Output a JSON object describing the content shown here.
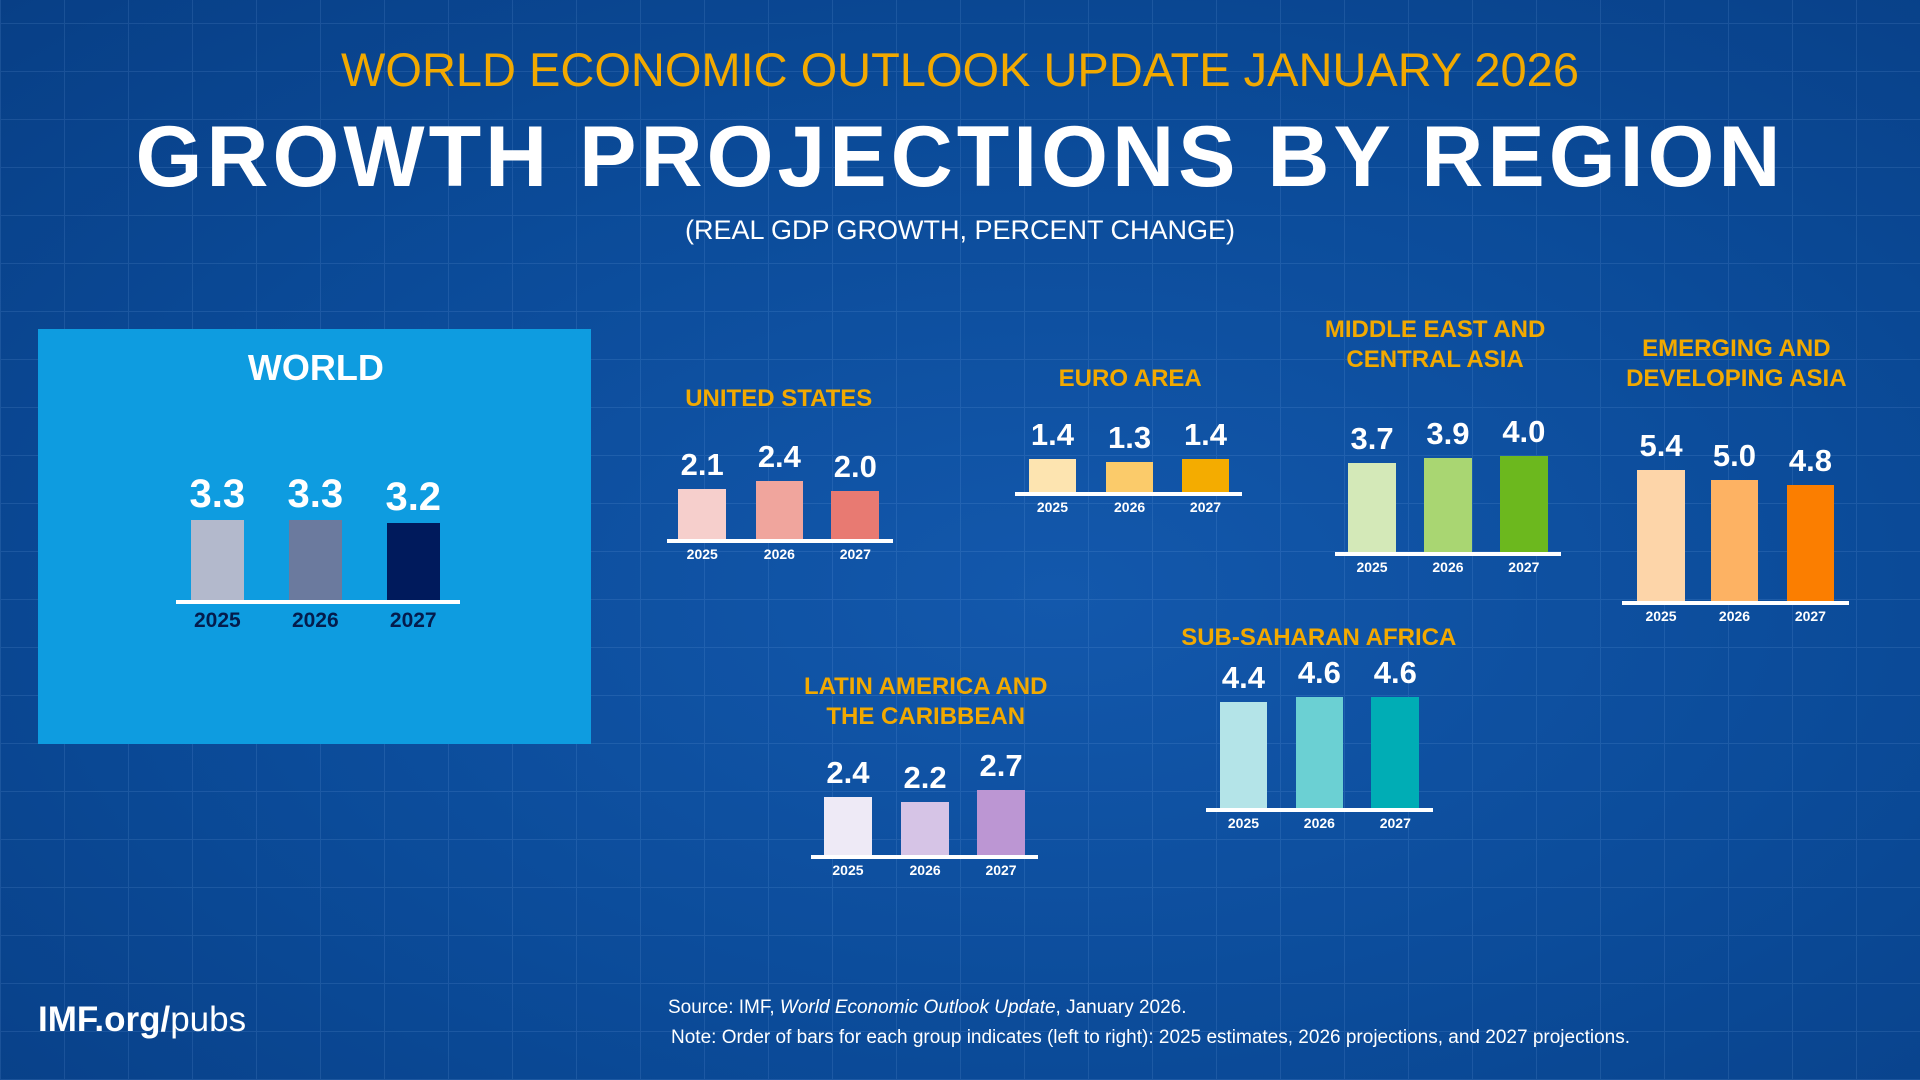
{
  "header": {
    "supertitle": "WORLD ECONOMIC OUTLOOK UPDATE JANUARY 2026",
    "title": "GROWTH PROJECTIONS BY REGION",
    "subtitle": "(REAL GDP GROWTH, PERCENT CHANGE)"
  },
  "footer": {
    "logo_bold": "IMF.org/",
    "logo_light": "pubs",
    "source_prefix": "Source:  IMF, ",
    "source_italic": "World Economic Outlook Update",
    "source_suffix": ", January 2026.",
    "note": "Note:  Order of bars for each group indicates (left to right): 2025 estimates, 2026 projections, and 2027 projections."
  },
  "colors": {
    "background": "#0b4b99",
    "accent": "#f2a900",
    "world_panel": "#0e9ce0"
  },
  "chart_data": [
    {
      "type": "bar",
      "title": "WORLD",
      "categories": [
        "2025",
        "2026",
        "2027"
      ],
      "values": [
        3.3,
        3.3,
        3.2
      ],
      "colors": [
        "#b3b9cc",
        "#6b7a9e",
        "#001a5c"
      ]
    },
    {
      "type": "bar",
      "title": "UNITED STATES",
      "categories": [
        "2025",
        "2026",
        "2027"
      ],
      "values": [
        2.1,
        2.4,
        2.0
      ],
      "colors": [
        "#f6cfcc",
        "#f0a59d",
        "#e87a72"
      ]
    },
    {
      "type": "bar",
      "title": "EURO AREA",
      "categories": [
        "2025",
        "2026",
        "2027"
      ],
      "values": [
        1.4,
        1.3,
        1.4
      ],
      "colors": [
        "#fde4b0",
        "#fbcb6a",
        "#f4ac00"
      ]
    },
    {
      "type": "bar",
      "title": "MIDDLE EAST AND\nCENTRAL ASIA",
      "categories": [
        "2025",
        "2026",
        "2027"
      ],
      "values": [
        3.7,
        3.9,
        4.0
      ],
      "colors": [
        "#d4e9b8",
        "#a9d672",
        "#6cb81e"
      ]
    },
    {
      "type": "bar",
      "title": "EMERGING AND\nDEVELOPING ASIA",
      "categories": [
        "2025",
        "2026",
        "2027"
      ],
      "values": [
        5.4,
        5.0,
        4.8
      ],
      "colors": [
        "#fdd5a9",
        "#fdb263",
        "#fb7e00"
      ]
    },
    {
      "type": "bar",
      "title": "SUB-SAHARAN AFRICA",
      "categories": [
        "2025",
        "2026",
        "2027"
      ],
      "values": [
        4.4,
        4.6,
        4.6
      ],
      "colors": [
        "#b4e4e8",
        "#6bd0d3",
        "#00adb5"
      ]
    },
    {
      "type": "bar",
      "title": "LATIN AMERICA AND\nTHE CARIBBEAN",
      "categories": [
        "2025",
        "2026",
        "2027"
      ],
      "values": [
        2.4,
        2.2,
        2.7
      ],
      "colors": [
        "#eeeaf6",
        "#d6c4e6",
        "#bc96d3"
      ]
    }
  ]
}
